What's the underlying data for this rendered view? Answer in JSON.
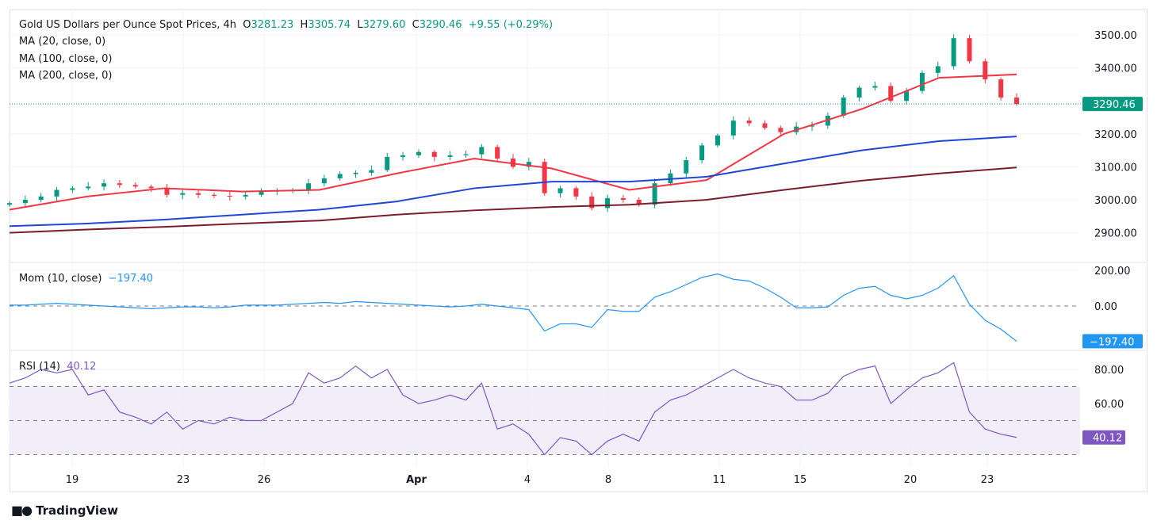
{
  "header": {
    "title": "Gold US Dollars per Ounce Spot Prices, 4h",
    "open_label": "O",
    "open": "3281.23",
    "high_label": "H",
    "high": "3305.74",
    "low_label": "L",
    "low": "3279.60",
    "close_label": "C",
    "close": "3290.46",
    "change": "+9.55 (+0.29%)"
  },
  "indicators": [
    "MA (20, close, 0)",
    "MA (100, close, 0)",
    "MA (200, close, 0)"
  ],
  "mom_label": "Mom (10, close)",
  "mom_value": "−197.40",
  "rsi_label": "RSI (14)",
  "rsi_value": "40.12",
  "price_badge": "3290.46",
  "mom_badge": "−197.40",
  "rsi_badge": "40.12",
  "footer": {
    "brand": "TradingView"
  },
  "colors": {
    "up": "#089981",
    "down": "#f23645",
    "ma20": "#f23645",
    "ma100": "#2046d6",
    "ma200": "#7b1c2a",
    "mom": "#2196f3",
    "rsi": "#7e57c2"
  },
  "chart_data": [
    {
      "type": "candlestick",
      "title": "Gold US Dollars per Ounce Spot Prices, 4h",
      "x_tick_labels": [
        "19",
        "23",
        "26",
        "Apr",
        "4",
        "8",
        "11",
        "15",
        "20",
        "23"
      ],
      "y_ticks": [
        2900,
        3000,
        3100,
        3200,
        3300,
        3400,
        3500
      ],
      "y_tick_labels": [
        "2900.00",
        "3000.00",
        "3100.00",
        "3200.00",
        "3400.00",
        "3500.00"
      ],
      "ylim": [
        2840,
        3570
      ],
      "last_price": 3290.46,
      "closes": [
        2990,
        3000,
        3010,
        3030,
        3035,
        3040,
        3050,
        3045,
        3040,
        3035,
        3015,
        3020,
        3015,
        3012,
        3010,
        3015,
        3025,
        3028,
        3030,
        3050,
        3065,
        3078,
        3082,
        3090,
        3130,
        3135,
        3145,
        3130,
        3135,
        3138,
        3160,
        3125,
        3100,
        3115,
        3020,
        3035,
        3010,
        2975,
        3005,
        3000,
        2985,
        3050,
        3080,
        3120,
        3165,
        3195,
        3240,
        3232,
        3218,
        3205,
        3222,
        3225,
        3255,
        3310,
        3340,
        3345,
        3300,
        3330,
        3385,
        3405,
        3490,
        3420,
        3365,
        3310,
        3290.46
      ],
      "series": [
        {
          "name": "MA (20, close, 0)",
          "values": [
            2970,
            3010,
            3035,
            3025,
            3030,
            3080,
            3125,
            3095,
            3030,
            3060,
            3200,
            3275,
            3370,
            3380
          ]
        },
        {
          "name": "MA (100, close, 0)",
          "values": [
            2920,
            2928,
            2940,
            2955,
            2970,
            2995,
            3035,
            3055,
            3055,
            3070,
            3110,
            3150,
            3178,
            3192
          ]
        },
        {
          "name": "MA (200, close, 0)",
          "values": [
            2900,
            2910,
            2918,
            2928,
            2937,
            2955,
            2968,
            2978,
            2985,
            3000,
            3030,
            3058,
            3080,
            3098
          ]
        }
      ],
      "grid": true
    },
    {
      "type": "line",
      "title": "Mom (10, close)",
      "y_tick_labels": [
        "200.00",
        "0.00"
      ],
      "ylim": [
        -245,
        225
      ],
      "values": [
        5,
        5,
        10,
        15,
        10,
        5,
        0,
        -5,
        -10,
        -15,
        -10,
        -5,
        -5,
        -10,
        -5,
        5,
        5,
        5,
        10,
        15,
        20,
        15,
        25,
        20,
        15,
        10,
        5,
        0,
        -5,
        0,
        10,
        0,
        -10,
        -20,
        -140,
        -100,
        -100,
        -120,
        -20,
        -30,
        -30,
        50,
        80,
        120,
        160,
        180,
        150,
        140,
        100,
        50,
        -10,
        -10,
        -5,
        60,
        100,
        110,
        60,
        40,
        60,
        100,
        170,
        10,
        -80,
        -130,
        -197.4
      ]
    },
    {
      "type": "line",
      "title": "RSI (14)",
      "y_tick_labels": [
        "80.00",
        "60.00"
      ],
      "bands": [
        30,
        50,
        70
      ],
      "ylim": [
        19,
        91
      ],
      "values": [
        72,
        75,
        80,
        78,
        80,
        65,
        68,
        55,
        52,
        48,
        55,
        45,
        50,
        48,
        52,
        50,
        50,
        55,
        60,
        78,
        72,
        75,
        82,
        75,
        80,
        65,
        60,
        62,
        65,
        62,
        72,
        45,
        48,
        42,
        30,
        40,
        38,
        30,
        38,
        42,
        38,
        55,
        62,
        65,
        70,
        75,
        80,
        75,
        72,
        70,
        62,
        62,
        66,
        76,
        80,
        82,
        60,
        68,
        75,
        78,
        84,
        55,
        45,
        42,
        40.12
      ]
    }
  ]
}
